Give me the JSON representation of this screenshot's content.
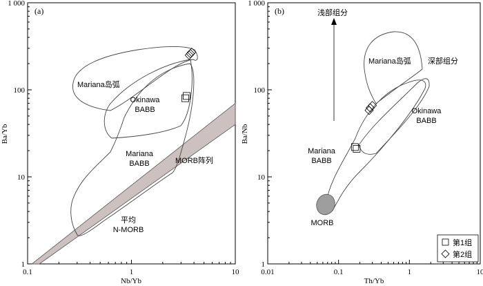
{
  "chart_data": [
    {
      "type": "scatter",
      "panel_label": "(a)",
      "xlabel": "Nb/Yb",
      "ylabel": "Ba/Yb",
      "xscale": "log",
      "yscale": "log",
      "xlim": [
        0.1,
        10
      ],
      "ylim": [
        1,
        1000
      ],
      "xtick_labels": [
        "0.1",
        "1",
        "10"
      ],
      "ytick_labels": [
        "1",
        "10",
        "100",
        "1 000"
      ],
      "field_labels": [
        {
          "text": "Mariana岛弧",
          "x": 0.2,
          "y": 100
        },
        {
          "text": "Okinawa",
          "x": 1.1,
          "y": 85
        },
        {
          "text": "BABB",
          "x": 1.1,
          "y": 67
        },
        {
          "text": "Mariana",
          "x": 0.8,
          "y": 20
        },
        {
          "text": "BABB",
          "x": 0.8,
          "y": 16
        },
        {
          "text": "MORB阵列",
          "x": 2.6,
          "y": 19
        },
        {
          "text": "平均",
          "x": 0.8,
          "y": 4.5
        },
        {
          "text": "N-MORB",
          "x": 0.8,
          "y": 3.6
        }
      ],
      "series": [
        {
          "name": "第1组",
          "marker": "square",
          "points": [
            [
              3.3,
              80
            ],
            [
              3.4,
              85
            ]
          ]
        },
        {
          "name": "第2组",
          "marker": "diamond",
          "points": [
            [
              3.6,
              250
            ],
            [
              3.8,
              270
            ],
            [
              3.7,
              260
            ]
          ]
        }
      ],
      "morb_array_band": {
        "lower_start": [
          0.13,
          1
        ],
        "lower_end": [
          10,
          40
        ],
        "upper_start": [
          0.11,
          1
        ],
        "upper_end": [
          10,
          70
        ]
      }
    },
    {
      "type": "scatter",
      "panel_label": "(b)",
      "xlabel": "Th/Yb",
      "ylabel": "Ba/Nb",
      "xscale": "log",
      "yscale": "log",
      "xlim": [
        0.01,
        10
      ],
      "ylim": [
        1,
        1000
      ],
      "xtick_labels": [
        "0.01",
        "0.1",
        "1",
        "10"
      ],
      "ytick_labels": [
        "1",
        "10",
        "100",
        "1 000"
      ],
      "field_labels": [
        {
          "text": "浅部组分",
          "x": 0.07,
          "y": 700
        },
        {
          "text": "深部组分",
          "x": 1.6,
          "y": 180
        },
        {
          "text": "Mariana岛弧",
          "x": 0.45,
          "y": 170
        },
        {
          "text": "Okinawa",
          "x": 2.3,
          "y": 50
        },
        {
          "text": "BABB",
          "x": 2.3,
          "y": 38
        },
        {
          "text": "Mariana",
          "x": 0.06,
          "y": 20
        },
        {
          "text": "BABB",
          "x": 0.06,
          "y": 15.5
        },
        {
          "text": "MORB",
          "x": 0.065,
          "y": 3.6
        }
      ],
      "series": [
        {
          "name": "第1组",
          "marker": "square",
          "points": [
            [
              0.17,
              22
            ],
            [
              0.18,
              21
            ]
          ]
        },
        {
          "name": "第2组",
          "marker": "diamond",
          "points": [
            [
              0.28,
              62
            ],
            [
              0.3,
              66
            ],
            [
              0.27,
              58
            ]
          ]
        }
      ],
      "legend": {
        "placement": "bottom-right",
        "entries": [
          {
            "marker": "square",
            "text": "第1组"
          },
          {
            "marker": "diamond",
            "text": "第2组"
          }
        ]
      }
    }
  ]
}
